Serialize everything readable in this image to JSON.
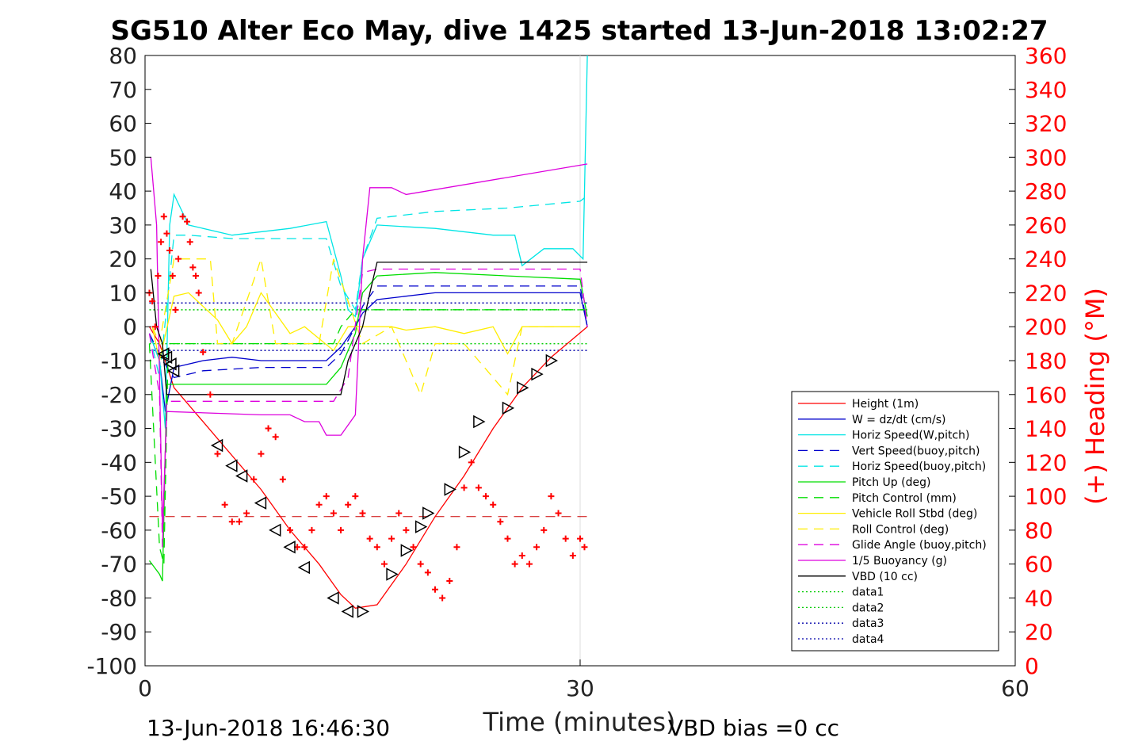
{
  "chart_data": {
    "type": "line",
    "title": "SG510 Alter Eco May, dive 1425 started 13-Jun-2018 13:02:27",
    "xlabel": "Time (minutes)",
    "ylabel_right": "(+) Heading (°M)",
    "footer_left": "13-Jun-2018 16:46:30",
    "footer_right": "VBD bias =0 cc",
    "xlim": [
      0,
      60
    ],
    "ylim_left": [
      -100,
      80
    ],
    "ylim_right": [
      0,
      360
    ],
    "x_ticks": [
      "0",
      "30",
      "60"
    ],
    "x_tick_values": [
      0,
      30,
      60
    ],
    "y_left_ticks": [
      "80",
      "70",
      "60",
      "50",
      "40",
      "30",
      "20",
      "10",
      "0",
      "-10",
      "-20",
      "-30",
      "-40",
      "-50",
      "-60",
      "-70",
      "-80",
      "-90",
      "-100"
    ],
    "y_left_tick_values": [
      80,
      70,
      60,
      50,
      40,
      30,
      20,
      10,
      0,
      -10,
      -20,
      -30,
      -40,
      -50,
      -60,
      -70,
      -80,
      -90,
      -100
    ],
    "y_right_ticks": [
      "360",
      "340",
      "320",
      "300",
      "280",
      "260",
      "240",
      "220",
      "200",
      "180",
      "160",
      "140",
      "120",
      "100",
      "80",
      "60",
      "40",
      "20",
      "0"
    ],
    "y_right_tick_values": [
      360,
      340,
      320,
      300,
      280,
      260,
      240,
      220,
      200,
      180,
      160,
      140,
      120,
      100,
      80,
      60,
      40,
      20,
      0
    ],
    "legend_position": "lower-right",
    "legend": [
      {
        "name": "Height (1m)",
        "color": "#ff0000",
        "dash": "solid"
      },
      {
        "name": "W = dz/dt (cm/s)",
        "color": "#0000cc",
        "dash": "solid"
      },
      {
        "name": "Horiz Speed(W,pitch)",
        "color": "#00e5e5",
        "dash": "solid"
      },
      {
        "name": "Vert Speed(buoy,pitch)",
        "color": "#0000cc",
        "dash": "dashed"
      },
      {
        "name": "Horiz Speed(buoy,pitch)",
        "color": "#00e5e5",
        "dash": "dashed"
      },
      {
        "name": "Pitch Up (deg)",
        "color": "#00dd00",
        "dash": "solid"
      },
      {
        "name": "Pitch Control (mm)",
        "color": "#00dd00",
        "dash": "dashed"
      },
      {
        "name": "Vehicle Roll Stbd (deg)",
        "color": "#ffee00",
        "dash": "solid"
      },
      {
        "name": "Roll Control (deg)",
        "color": "#ffee00",
        "dash": "dashed"
      },
      {
        "name": "Glide Angle (buoy,pitch)",
        "color": "#dd00dd",
        "dash": "dashed"
      },
      {
        "name": "1/5 Buoyancy (g)",
        "color": "#dd00dd",
        "dash": "solid"
      },
      {
        "name": "VBD (10 cc)",
        "color": "#000000",
        "dash": "solid"
      },
      {
        "name": "data1",
        "color": "#00cc00",
        "dash": "dotted"
      },
      {
        "name": "data2",
        "color": "#00cc00",
        "dash": "dotted"
      },
      {
        "name": "data3",
        "color": "#0000aa",
        "dash": "dotted"
      },
      {
        "name": "data4",
        "color": "#0000aa",
        "dash": "dotted"
      }
    ],
    "series": [
      {
        "name": "Height (1m)",
        "color": "#ff0000",
        "dash": "solid",
        "x": [
          0.3,
          1.0,
          2.0,
          5.0,
          8.0,
          10.0,
          12.0,
          13.5,
          14.5,
          16.0,
          18.0,
          20.0,
          22.0,
          24.0,
          26.0,
          28.0,
          30.5
        ],
        "y": [
          0,
          -5,
          -18,
          -33,
          -48,
          -60,
          -70,
          -79,
          -83,
          -82,
          -70,
          -56,
          -44,
          -30,
          -18,
          -9,
          0
        ]
      },
      {
        "name": "W = dz/dt (cm/s)",
        "color": "#0000cc",
        "dash": "solid",
        "x": [
          0.3,
          1.0,
          1.4,
          2.0,
          4.0,
          6.0,
          8.0,
          10.0,
          12.5,
          13.5,
          14.5,
          15.0,
          16.0,
          20.0,
          25.0,
          30.0,
          30.5
        ],
        "y": [
          -2,
          -10,
          -25,
          -12,
          -10,
          -9,
          -10,
          -10,
          -10,
          -6,
          0,
          4,
          8,
          10,
          10,
          10,
          0
        ]
      },
      {
        "name": "Horiz Speed(W,pitch)",
        "color": "#00e5e5",
        "dash": "solid",
        "x": [
          0.3,
          1.0,
          1.4,
          1.7,
          2.0,
          3.0,
          6.0,
          10.0,
          12.5,
          13.5,
          14.0,
          14.5,
          15.0,
          16.0,
          20.0,
          24.0,
          25.5,
          26.0,
          27.5,
          29.5,
          30.2,
          30.5
        ],
        "y": [
          -2,
          -10,
          -30,
          30,
          39,
          30,
          27,
          29,
          31,
          15,
          5,
          3,
          20,
          30,
          29,
          27,
          27,
          18,
          23,
          23,
          20,
          80
        ]
      },
      {
        "name": "Vert Speed(buoy,pitch)",
        "color": "#0000cc",
        "dash": "dashed",
        "x": [
          0.3,
          1.2,
          2.0,
          4.0,
          8.0,
          12.5,
          13.5,
          14.5,
          15.0,
          16.0,
          20.0,
          25.0,
          30.0,
          30.5
        ],
        "y": [
          -2,
          -10,
          -15,
          -13,
          -12,
          -12,
          -8,
          0,
          6,
          12,
          12,
          12,
          12,
          0
        ]
      },
      {
        "name": "Horiz Speed(buoy,pitch)",
        "color": "#00e5e5",
        "dash": "dashed",
        "x": [
          0.3,
          1.0,
          2.0,
          3.0,
          6.0,
          10.0,
          12.5,
          13.5,
          14.5,
          15.0,
          16.0,
          20.0,
          25.0,
          30.0,
          30.3
        ],
        "y": [
          -2,
          -15,
          27,
          27,
          26,
          26,
          26,
          12,
          5,
          20,
          32,
          34,
          35,
          37,
          38
        ]
      },
      {
        "name": "Pitch Up (deg)",
        "color": "#00dd00",
        "dash": "solid",
        "x": [
          0.3,
          1.0,
          1.2,
          1.5,
          2.0,
          4.0,
          8.0,
          12.5,
          13.5,
          14.5,
          15.0,
          16.0,
          20.0,
          25.0,
          30.0,
          30.5
        ],
        "y": [
          -69,
          -73,
          -75,
          -17,
          -17,
          -17,
          -17,
          -17,
          -12,
          -2,
          10,
          15,
          16,
          15,
          14,
          3
        ]
      },
      {
        "name": "Pitch Control (mm)",
        "color": "#00dd00",
        "dash": "dashed",
        "x": [
          0.3,
          1.0,
          1.3,
          1.6,
          2.0,
          13.0,
          13.5,
          14.5,
          30.5
        ],
        "y": [
          -5,
          -65,
          -70,
          -5,
          -5,
          -5,
          0,
          5,
          5
        ]
      },
      {
        "name": "Vehicle Roll Stbd (deg)",
        "color": "#ffee00",
        "dash": "solid",
        "x": [
          0.5,
          1.0,
          2.0,
          3.0,
          5.0,
          6.0,
          7.0,
          8.0,
          10.0,
          11.0,
          13.0,
          14.0,
          15.0,
          17.0,
          18.0,
          20.0,
          22.0,
          24.0,
          25.0,
          26.0,
          28.0,
          30.0
        ],
        "y": [
          0,
          -10,
          9,
          10,
          2,
          -5,
          0,
          10,
          -2,
          0,
          -7,
          0,
          0,
          0,
          -1,
          0,
          -2,
          0,
          -8,
          0,
          0,
          0
        ]
      },
      {
        "name": "Roll Control (deg)",
        "color": "#ffee00",
        "dash": "dashed",
        "x": [
          0.5,
          1.0,
          2.0,
          3.0,
          4.5,
          5.0,
          6.0,
          8.0,
          9.0,
          12.0,
          13.0,
          15.0,
          17.0,
          19.0,
          20.0,
          22.0,
          25.0,
          26.0,
          28.0,
          30.0
        ],
        "y": [
          0,
          -5,
          20,
          20,
          20,
          -5,
          -5,
          20,
          -5,
          -5,
          20,
          -5,
          0,
          -20,
          -5,
          -5,
          -20,
          0,
          0,
          0
        ]
      },
      {
        "name": "Glide Angle (buoy,pitch)",
        "color": "#dd00dd",
        "dash": "dashed",
        "x": [
          0.3,
          1.0,
          1.2,
          1.5,
          2.0,
          13.0,
          14.0,
          15.0,
          16.0,
          20.0,
          25.0,
          30.0,
          30.5
        ],
        "y": [
          -2,
          -20,
          -65,
          -22,
          -22,
          -22,
          -15,
          16,
          17,
          17,
          17,
          17,
          0
        ]
      },
      {
        "name": "1/5 Buoyancy (g)",
        "color": "#dd00dd",
        "dash": "solid",
        "x": [
          0.4,
          0.8,
          1.2,
          1.5,
          8.0,
          10.0,
          11.0,
          12.0,
          12.5,
          13.5,
          14.5,
          15.0,
          15.5,
          17.0,
          18.0,
          30.5
        ],
        "y": [
          50,
          30,
          -60,
          -25,
          -26,
          -26,
          -28,
          -28,
          -32,
          -32,
          -26,
          20,
          41,
          41,
          39,
          48
        ]
      },
      {
        "name": "VBD (10 cc)",
        "color": "#000000",
        "dash": "solid",
        "x": [
          0.4,
          0.8,
          1.2,
          1.5,
          13.0,
          13.5,
          14.0,
          15.0,
          15.5,
          16.0,
          30.5
        ],
        "y": [
          17,
          0,
          -5,
          -20,
          -20,
          -20,
          -10,
          0,
          10,
          19,
          19
        ]
      }
    ],
    "data_lines": [
      {
        "name": "data1",
        "color": "#00cc00",
        "y": -5
      },
      {
        "name": "data2",
        "color": "#00cc00",
        "y": 5
      },
      {
        "name": "data3",
        "color": "#0000aa",
        "y": 7
      },
      {
        "name": "data4",
        "color": "#0000aa",
        "y": -7
      }
    ],
    "target_heading_right": 88,
    "heading_marks": {
      "description": "Heading samples (right axis, degrees magnetic), red plus markers",
      "x": [
        0.3,
        0.5,
        0.7,
        0.9,
        1.1,
        1.3,
        1.5,
        1.7,
        1.9,
        2.1,
        2.3,
        2.6,
        2.9,
        3.1,
        3.3,
        3.5,
        3.7,
        4.0,
        4.5,
        5.0,
        5.5,
        6.0,
        6.5,
        7.0,
        7.5,
        8.0,
        8.5,
        9.0,
        9.5,
        10.0,
        10.5,
        11.0,
        11.5,
        12.0,
        12.5,
        13.0,
        13.5,
        14.0,
        14.5,
        15.0,
        15.5,
        16.0,
        16.5,
        17.0,
        17.5,
        18.0,
        18.5,
        19.0,
        19.5,
        20.0,
        20.5,
        21.0,
        21.5,
        22.0,
        22.5,
        23.0,
        23.5,
        24.0,
        24.5,
        25.0,
        25.5,
        26.0,
        26.5,
        27.0,
        27.5,
        28.0,
        28.5,
        29.0,
        29.5,
        30.0,
        30.3
      ],
      "y": [
        220,
        215,
        200,
        230,
        250,
        265,
        255,
        245,
        230,
        210,
        240,
        265,
        262,
        250,
        235,
        230,
        220,
        185,
        160,
        125,
        95,
        85,
        85,
        90,
        110,
        125,
        140,
        135,
        110,
        80,
        70,
        70,
        80,
        95,
        100,
        90,
        80,
        95,
        100,
        90,
        75,
        70,
        60,
        75,
        90,
        80,
        70,
        60,
        55,
        45,
        40,
        50,
        70,
        105,
        120,
        105,
        100,
        95,
        85,
        75,
        60,
        65,
        60,
        70,
        80,
        100,
        90,
        75,
        65,
        75,
        70
      ]
    },
    "profile_markers": {
      "description": "Triangle markers along Height (1m) trace",
      "x": [
        1.3,
        1.5,
        1.8,
        2.0,
        5.0,
        6.0,
        6.7,
        8.0,
        9.0,
        10.0,
        11.0,
        13.0,
        14.0,
        15.0,
        17.0,
        18.0,
        19.0,
        19.5,
        21.0,
        22.0,
        23.0,
        25.0,
        26.0,
        27.0,
        28.0
      ],
      "y": [
        -8,
        -9,
        -11,
        -13,
        -35,
        -41,
        -44,
        -52,
        -60,
        -65,
        -71,
        -80,
        -84,
        -84,
        -73,
        -66,
        -59,
        -55,
        -48,
        -37,
        -28,
        -24,
        -18,
        -14,
        -10
      ]
    },
    "grid": true
  }
}
